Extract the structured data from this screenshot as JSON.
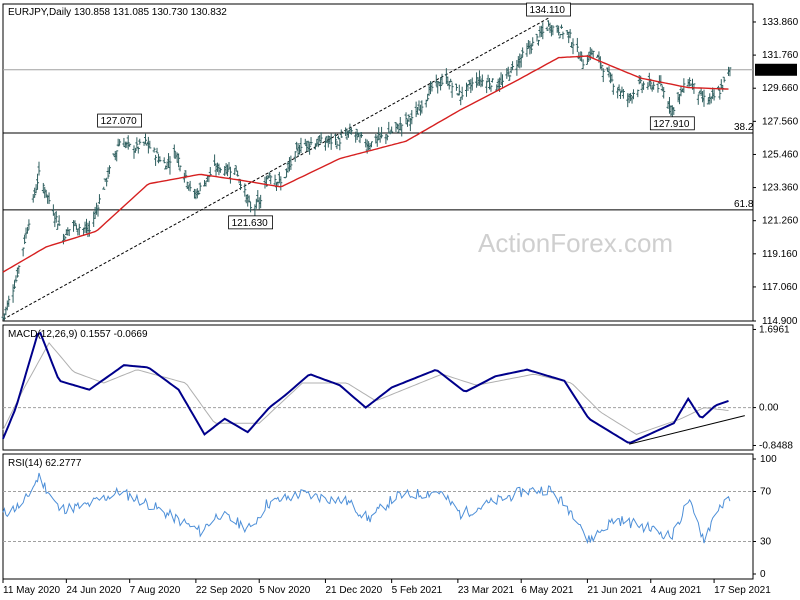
{
  "chart_data": [
    {
      "panel": "price",
      "type": "ohlc",
      "header": "EURJPY,Daily  130.858 131.085 130.730 130.832",
      "watermark": "ActionForex.com",
      "ylim": [
        114.9,
        135.0
      ],
      "yticks": [
        "133.860",
        "131.760",
        "129.660",
        "127.560",
        "125.460",
        "123.360",
        "121.260",
        "119.160",
        "117.060",
        "114.900"
      ],
      "last_price_label": "130.832",
      "horizontal_levels": [
        {
          "value": 130.83,
          "style": "grey",
          "label": ""
        },
        {
          "value": 126.82,
          "style": "black",
          "label": "38.2"
        },
        {
          "value": 121.95,
          "style": "black",
          "label": "61.8"
        }
      ],
      "annotations": [
        {
          "text": "134.110",
          "date": "2021-05-25",
          "value": 134.11
        },
        {
          "text": "127.070",
          "date": "2020-07-31",
          "value": 127.07
        },
        {
          "text": "121.630",
          "date": "2020-10-30",
          "value": 121.63
        },
        {
          "text": "127.910",
          "date": "2021-08-19",
          "value": 127.91
        }
      ],
      "trend_channel": {
        "from": {
          "date": "2020-05-11",
          "value": 115.0
        },
        "to": {
          "date": "2021-05-25",
          "value": 134.11
        }
      },
      "price_key_points": [
        {
          "date": "2020-05-11",
          "value": 115.1
        },
        {
          "date": "2020-05-20",
          "value": 117.5
        },
        {
          "date": "2020-06-05",
          "value": 124.2
        },
        {
          "date": "2020-06-10",
          "value": 123.0
        },
        {
          "date": "2020-06-22",
          "value": 120.3
        },
        {
          "date": "2020-06-29",
          "value": 121.0
        },
        {
          "date": "2020-07-10",
          "value": 120.6
        },
        {
          "date": "2020-07-20",
          "value": 123.4
        },
        {
          "date": "2020-07-31",
          "value": 126.3
        },
        {
          "date": "2020-08-10",
          "value": 125.8
        },
        {
          "date": "2020-08-18",
          "value": 126.2
        },
        {
          "date": "2020-09-01",
          "value": 124.8
        },
        {
          "date": "2020-09-08",
          "value": 125.6
        },
        {
          "date": "2020-09-21",
          "value": 122.8
        },
        {
          "date": "2020-10-05",
          "value": 124.6
        },
        {
          "date": "2020-10-20",
          "value": 124.5
        },
        {
          "date": "2020-10-30",
          "value": 122.0
        },
        {
          "date": "2020-11-06",
          "value": 122.5
        },
        {
          "date": "2020-11-12",
          "value": 124.3
        },
        {
          "date": "2020-11-20",
          "value": 123.6
        },
        {
          "date": "2020-12-04",
          "value": 126.1
        },
        {
          "date": "2020-12-21",
          "value": 126.3
        },
        {
          "date": "2020-12-30",
          "value": 126.3
        },
        {
          "date": "2021-01-08",
          "value": 126.9
        },
        {
          "date": "2021-01-20",
          "value": 126.1
        },
        {
          "date": "2021-02-05",
          "value": 126.9
        },
        {
          "date": "2021-02-22",
          "value": 128.0
        },
        {
          "date": "2021-03-05",
          "value": 129.7
        },
        {
          "date": "2021-03-15",
          "value": 130.2
        },
        {
          "date": "2021-03-25",
          "value": 129.2
        },
        {
          "date": "2021-04-05",
          "value": 130.2
        },
        {
          "date": "2021-04-22",
          "value": 129.9
        },
        {
          "date": "2021-05-04",
          "value": 131.4
        },
        {
          "date": "2021-05-25",
          "value": 133.6
        },
        {
          "date": "2021-06-08",
          "value": 133.1
        },
        {
          "date": "2021-06-18",
          "value": 131.3
        },
        {
          "date": "2021-06-25",
          "value": 132.0
        },
        {
          "date": "2021-07-08",
          "value": 130.1
        },
        {
          "date": "2021-07-19",
          "value": 129.0
        },
        {
          "date": "2021-07-28",
          "value": 129.9
        },
        {
          "date": "2021-08-11",
          "value": 129.8
        },
        {
          "date": "2021-08-19",
          "value": 128.3
        },
        {
          "date": "2021-08-30",
          "value": 130.2
        },
        {
          "date": "2021-09-09",
          "value": 129.0
        },
        {
          "date": "2021-09-15",
          "value": 128.9
        },
        {
          "date": "2021-09-22",
          "value": 129.6
        },
        {
          "date": "2021-09-28",
          "value": 130.8
        }
      ],
      "ma_key_points": [
        {
          "date": "2020-05-11",
          "value": 118.0
        },
        {
          "date": "2020-06-10",
          "value": 119.6
        },
        {
          "date": "2020-07-15",
          "value": 120.6
        },
        {
          "date": "2020-08-20",
          "value": 123.6
        },
        {
          "date": "2020-09-25",
          "value": 124.2
        },
        {
          "date": "2020-10-25",
          "value": 123.8
        },
        {
          "date": "2020-11-20",
          "value": 123.4
        },
        {
          "date": "2020-12-31",
          "value": 125.2
        },
        {
          "date": "2021-02-15",
          "value": 126.3
        },
        {
          "date": "2021-03-25",
          "value": 128.3
        },
        {
          "date": "2021-05-04",
          "value": 130.2
        },
        {
          "date": "2021-06-01",
          "value": 131.6
        },
        {
          "date": "2021-06-21",
          "value": 131.7
        },
        {
          "date": "2021-07-28",
          "value": 130.3
        },
        {
          "date": "2021-08-30",
          "value": 129.7
        },
        {
          "date": "2021-09-28",
          "value": 129.6
        }
      ]
    },
    {
      "panel": "macd",
      "type": "line",
      "header": "MACD(12,26,9) 0.1557 -0.0669",
      "ylim": [
        -0.8488,
        1.6961
      ],
      "yticks": [
        "1.6961",
        "0.00",
        "-0.8488"
      ],
      "zero_label": "0.00",
      "series": [
        {
          "role": "macd",
          "color": "#00008b",
          "key_points": [
            {
              "date": "2020-05-11",
              "value": -0.7
            },
            {
              "date": "2020-05-20",
              "value": 0.0
            },
            {
              "date": "2020-06-05",
              "value": 1.75
            },
            {
              "date": "2020-06-19",
              "value": 0.6
            },
            {
              "date": "2020-07-10",
              "value": 0.4
            },
            {
              "date": "2020-08-03",
              "value": 0.95
            },
            {
              "date": "2020-08-20",
              "value": 0.9
            },
            {
              "date": "2020-09-10",
              "value": 0.4
            },
            {
              "date": "2020-09-28",
              "value": -0.6
            },
            {
              "date": "2020-10-12",
              "value": -0.25
            },
            {
              "date": "2020-10-28",
              "value": -0.55
            },
            {
              "date": "2020-11-12",
              "value": 0.0
            },
            {
              "date": "2020-11-24",
              "value": 0.3
            },
            {
              "date": "2020-12-10",
              "value": 0.75
            },
            {
              "date": "2020-12-31",
              "value": 0.5
            },
            {
              "date": "2021-01-18",
              "value": 0.0
            },
            {
              "date": "2021-02-05",
              "value": 0.45
            },
            {
              "date": "2021-03-08",
              "value": 0.85
            },
            {
              "date": "2021-03-28",
              "value": 0.35
            },
            {
              "date": "2021-04-18",
              "value": 0.7
            },
            {
              "date": "2021-05-10",
              "value": 0.85
            },
            {
              "date": "2021-06-05",
              "value": 0.6
            },
            {
              "date": "2021-06-22",
              "value": -0.25
            },
            {
              "date": "2021-07-20",
              "value": -0.8
            },
            {
              "date": "2021-08-20",
              "value": -0.35
            },
            {
              "date": "2021-08-30",
              "value": 0.2
            },
            {
              "date": "2021-09-08",
              "value": -0.25
            },
            {
              "date": "2021-09-18",
              "value": 0.05
            },
            {
              "date": "2021-09-28",
              "value": 0.16
            }
          ]
        },
        {
          "role": "signal",
          "color": "#b0b0b0",
          "key_points": [
            {
              "date": "2020-05-11",
              "value": -0.5
            },
            {
              "date": "2020-05-25",
              "value": 0.4
            },
            {
              "date": "2020-06-12",
              "value": 1.45
            },
            {
              "date": "2020-06-29",
              "value": 0.8
            },
            {
              "date": "2020-07-20",
              "value": 0.55
            },
            {
              "date": "2020-08-12",
              "value": 0.85
            },
            {
              "date": "2020-09-15",
              "value": 0.55
            },
            {
              "date": "2020-10-05",
              "value": -0.35
            },
            {
              "date": "2020-11-05",
              "value": -0.35
            },
            {
              "date": "2020-12-05",
              "value": 0.55
            },
            {
              "date": "2021-01-05",
              "value": 0.55
            },
            {
              "date": "2021-01-25",
              "value": 0.15
            },
            {
              "date": "2021-03-12",
              "value": 0.75
            },
            {
              "date": "2021-04-05",
              "value": 0.5
            },
            {
              "date": "2021-05-15",
              "value": 0.75
            },
            {
              "date": "2021-06-10",
              "value": 0.55
            },
            {
              "date": "2021-06-30",
              "value": -0.1
            },
            {
              "date": "2021-07-25",
              "value": -0.6
            },
            {
              "date": "2021-08-25",
              "value": -0.25
            },
            {
              "date": "2021-09-10",
              "value": 0.0
            },
            {
              "date": "2021-09-28",
              "value": -0.07
            }
          ]
        }
      ],
      "trendline": {
        "from": {
          "date": "2021-07-20",
          "value": -0.82
        },
        "to": {
          "date": "2021-09-30",
          "value": -0.18
        }
      }
    },
    {
      "panel": "rsi",
      "type": "line",
      "header": "RSI(14) 62.2777",
      "ylim": [
        0,
        100
      ],
      "yticks": [
        "100",
        "70",
        "30",
        "0"
      ],
      "levels": [
        70,
        30
      ],
      "series": [
        {
          "role": "rsi",
          "color": "#4d8fd8",
          "key_points": [
            {
              "date": "2020-05-11",
              "value": 52
            },
            {
              "date": "2020-05-25",
              "value": 60
            },
            {
              "date": "2020-06-05",
              "value": 82
            },
            {
              "date": "2020-06-19",
              "value": 56
            },
            {
              "date": "2020-07-06",
              "value": 58
            },
            {
              "date": "2020-07-31",
              "value": 70
            },
            {
              "date": "2020-08-20",
              "value": 60
            },
            {
              "date": "2020-09-25",
              "value": 38
            },
            {
              "date": "2020-10-08",
              "value": 52
            },
            {
              "date": "2020-10-30",
              "value": 40
            },
            {
              "date": "2020-11-10",
              "value": 60
            },
            {
              "date": "2020-12-04",
              "value": 68
            },
            {
              "date": "2021-01-05",
              "value": 62
            },
            {
              "date": "2021-01-20",
              "value": 48
            },
            {
              "date": "2021-02-08",
              "value": 66
            },
            {
              "date": "2021-03-10",
              "value": 70
            },
            {
              "date": "2021-03-25",
              "value": 52
            },
            {
              "date": "2021-05-07",
              "value": 70
            },
            {
              "date": "2021-05-25",
              "value": 72
            },
            {
              "date": "2021-06-15",
              "value": 48
            },
            {
              "date": "2021-06-21",
              "value": 30
            },
            {
              "date": "2021-07-10",
              "value": 48
            },
            {
              "date": "2021-07-28",
              "value": 43
            },
            {
              "date": "2021-08-19",
              "value": 34
            },
            {
              "date": "2021-08-30",
              "value": 63
            },
            {
              "date": "2021-09-10",
              "value": 32
            },
            {
              "date": "2021-09-20",
              "value": 58
            },
            {
              "date": "2021-09-28",
              "value": 62.28
            }
          ]
        }
      ]
    }
  ],
  "x_axis": {
    "start": "2020-05-11",
    "end": "2021-10-05",
    "ticks": [
      {
        "label": "11 May 2020",
        "date": "2020-05-11"
      },
      {
        "label": "24 Jun 2020",
        "date": "2020-06-24"
      },
      {
        "label": "7 Aug 2020",
        "date": "2020-08-07"
      },
      {
        "label": "22 Sep 2020",
        "date": "2020-09-22"
      },
      {
        "label": "5 Nov 2020",
        "date": "2020-11-05"
      },
      {
        "label": "21 Dec 2020",
        "date": "2020-12-21"
      },
      {
        "label": "5 Feb 2021",
        "date": "2021-02-05"
      },
      {
        "label": "23 Mar 2021",
        "date": "2021-03-23"
      },
      {
        "label": "6 May 2021",
        "date": "2021-05-06"
      },
      {
        "label": "21 Jun 2021",
        "date": "2021-06-21"
      },
      {
        "label": "4 Aug 2021",
        "date": "2021-08-04"
      },
      {
        "label": "17 Sep 2021",
        "date": "2021-09-17"
      }
    ]
  },
  "colors": {
    "bars": "#2f5f5f",
    "moving_average": "#d62020",
    "macd": "#00008b",
    "signal": "#b0b0b0",
    "rsi": "#4d8fd8",
    "annotation_text": "#00008b",
    "grid_level": "#a0a0a0",
    "level_line": "#000000",
    "panel_border": "#000000"
  }
}
